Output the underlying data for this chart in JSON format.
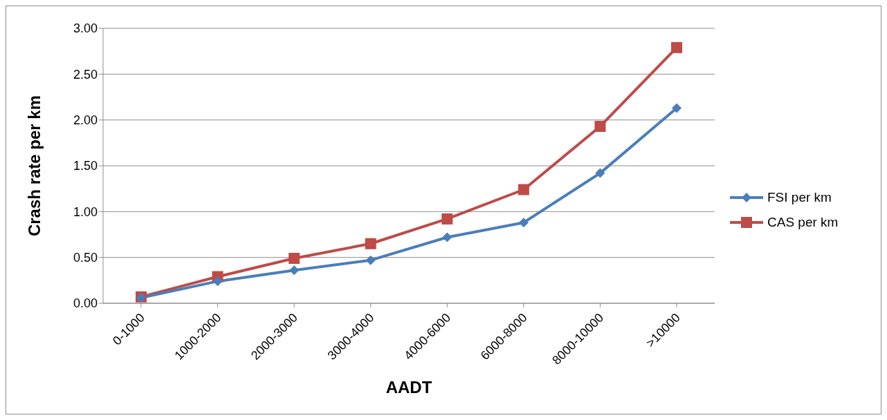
{
  "chart_data": {
    "type": "line",
    "xlabel": "AADT",
    "ylabel": "Crash rate per km",
    "categories": [
      "0-1000",
      "1000-2000",
      "2000-3000",
      "3000-4000",
      "4000-6000",
      "6000-8000",
      "8000-10000",
      ">10000"
    ],
    "series": [
      {
        "name": "FSI per km",
        "color": "#4a7ebb",
        "marker": "diamond",
        "values": [
          0.06,
          0.24,
          0.36,
          0.47,
          0.72,
          0.88,
          1.42,
          2.13
        ]
      },
      {
        "name": "CAS per km",
        "color": "#be4b48",
        "marker": "square",
        "values": [
          0.07,
          0.29,
          0.49,
          0.65,
          0.92,
          1.24,
          1.93,
          2.79
        ]
      }
    ],
    "ylim": [
      0,
      3
    ],
    "yticks": [
      {
        "value": 0,
        "label": "0.00"
      },
      {
        "value": 0.5,
        "label": "0.50"
      },
      {
        "value": 1,
        "label": "1.00"
      },
      {
        "value": 1.5,
        "label": "1.50"
      },
      {
        "value": 2,
        "label": "2.00"
      },
      {
        "value": 2.5,
        "label": "2.50"
      },
      {
        "value": 3,
        "label": "3.00"
      }
    ],
    "grid": "y",
    "legend": "right",
    "line_style": "solid"
  }
}
